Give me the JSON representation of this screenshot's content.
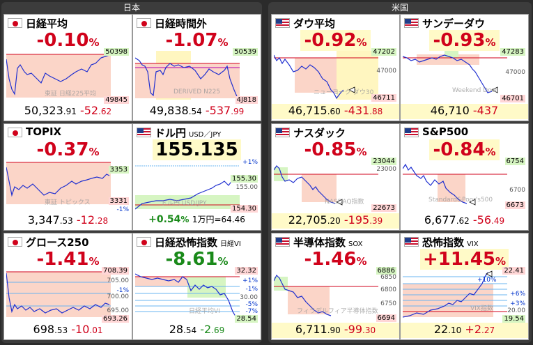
{
  "sections": {
    "japan": "日本",
    "us": "米国"
  },
  "cards": [
    {
      "name": "日経平均",
      "pct": "-0.10",
      "unit": "%",
      "hi": "50398",
      "lo": "49845",
      "wm": "東証 日経225平均",
      "price": "50,323",
      "dec": ".91",
      "chg": "-52",
      "chgd": ".62"
    },
    {
      "name": "日経時間外",
      "pct": "-1.07",
      "unit": "%",
      "hi": "50539",
      "lo": "4J818",
      "wm": "DERIVED N225",
      "price": "49,838",
      "dec": ".54",
      "chg": "-537",
      "chgd": ".99"
    },
    {
      "name": "TOPIX",
      "pct": "-0.37",
      "unit": "%",
      "hi": "3353",
      "lo": "3331",
      "mid": "-1%",
      "wm": "東証 トピックス",
      "price": "3,347",
      "dec": ".53",
      "chg": "-12",
      "chgd": ".28"
    },
    {
      "name": "ドル円",
      "sub": "USD／JPY",
      "pct": "155.135",
      "unit": "",
      "hi": "155.30",
      "mid2": "+1%",
      "mid3": "155.00",
      "lo": "154.30",
      "wm": "ドル円 USD/JPY",
      "chg1": "+0.54",
      "chg1u": "%",
      "chg2": "1万円=64.46"
    },
    {
      "name": "グロース250",
      "pct": "-1.41",
      "unit": "%",
      "hi": "708.39",
      "m1": "705.00",
      "m2": "-1%",
      "m3": "700.00",
      "m4": "695.00",
      "lo": "693.26",
      "price": "698",
      "dec": ".53",
      "chg": "-10",
      "chgd": ".01"
    },
    {
      "name": "日経恐怖指数",
      "sub": "日経VI",
      "pct": "-8.61",
      "unit": "%",
      "hi": "32.32",
      "m1": "+1%",
      "m2": "-1%",
      "m3": "30.00",
      "m4": "-5%",
      "m5": "-7%",
      "lo": "28.54",
      "wm": "日経平均VI",
      "price": "28",
      "dec": ".54",
      "chg": "-2",
      "chgd": ".69"
    },
    {
      "name": "ダウ平均",
      "pct": "-0.92",
      "unit": "%",
      "hi": "47202",
      "m1": "47000",
      "lo": "46711",
      "wm": "ニューヨーク ダウ30",
      "price": "46,715",
      "dec": ".60",
      "chg": "-431",
      "chgd": ".88"
    },
    {
      "name": "サンデーダウ",
      "pct": "-0.93",
      "unit": "%",
      "hi": "47283",
      "m1": "47000",
      "lo": "46701",
      "wm": "Weekend Dow",
      "price": "46,710",
      "dec": "",
      "chg": "-437",
      "chgd": ""
    },
    {
      "name": "ナスダック",
      "pct": "-0.85",
      "unit": "%",
      "hi": "23044",
      "m1": "23000",
      "lo": "22673",
      "wm": "NASDAQ指数",
      "price": "22,705",
      "dec": ".20",
      "chg": "-195",
      "chgd": ".39"
    },
    {
      "name": "S&P500",
      "pct": "-0.84",
      "unit": "%",
      "hi": "6754",
      "m1": "6700",
      "lo": "6673",
      "wm": "Standard&Poor's500",
      "price": "6,677",
      "dec": ".62",
      "chg": "-56",
      "chgd": ".49"
    },
    {
      "name": "半導体指数",
      "sub": "SOX",
      "pct": "-1.46",
      "unit": "%",
      "hi": "6886",
      "m1": "6850",
      "m2": "6800",
      "m3": "6750",
      "lo": "6694",
      "wm": "フィラデルフィア半導体指数",
      "price": "6,711",
      "dec": ".90",
      "chg": "-99",
      "chgd": ".30"
    },
    {
      "name": "恐怖指数",
      "sub": "VIX",
      "pct": "+11.45",
      "unit": "%",
      "hi": "22.41",
      "m1": "+10%",
      "m2": "+6%",
      "m3": "+3%",
      "m4": "20.00",
      "lo": "19.54",
      "wm": "VIX指数",
      "price": "22",
      "dec": ".10",
      "chg": "+2",
      "chgd": ".27"
    }
  ]
}
